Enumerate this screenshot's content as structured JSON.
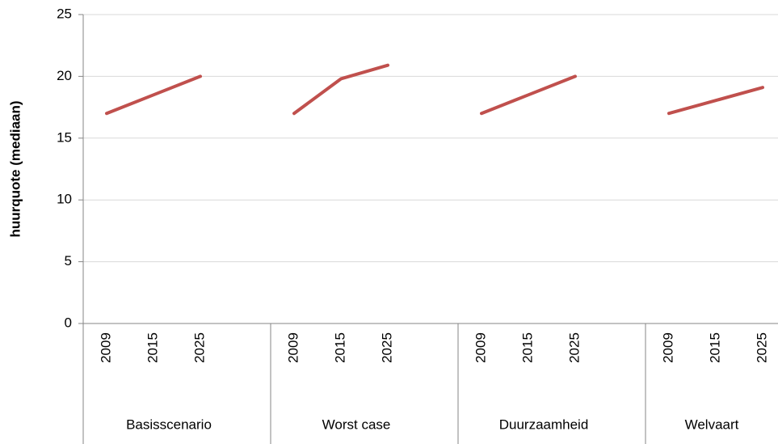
{
  "chart_data": {
    "type": "line",
    "y_label": "huurquote (mediaan)",
    "color": "#c0504d",
    "ylim": [
      0,
      25
    ],
    "yticks": [
      0,
      5,
      10,
      15,
      20,
      25
    ],
    "grid": true,
    "groups": [
      {
        "label": "Basisscenario",
        "categories": [
          "2009",
          "2015",
          "2025"
        ],
        "values": [
          17,
          18.5,
          20
        ]
      },
      {
        "label": "Worst case",
        "categories": [
          "2009",
          "2015",
          "2025"
        ],
        "values": [
          17,
          19.8,
          20.9
        ]
      },
      {
        "label": "Duurzaamheid",
        "categories": [
          "2009",
          "2015",
          "2025"
        ],
        "values": [
          17,
          18.5,
          20
        ]
      },
      {
        "label": "Welvaart",
        "categories": [
          "2009",
          "2015",
          "2025"
        ],
        "values": [
          17,
          18.05,
          19.1
        ]
      }
    ]
  }
}
